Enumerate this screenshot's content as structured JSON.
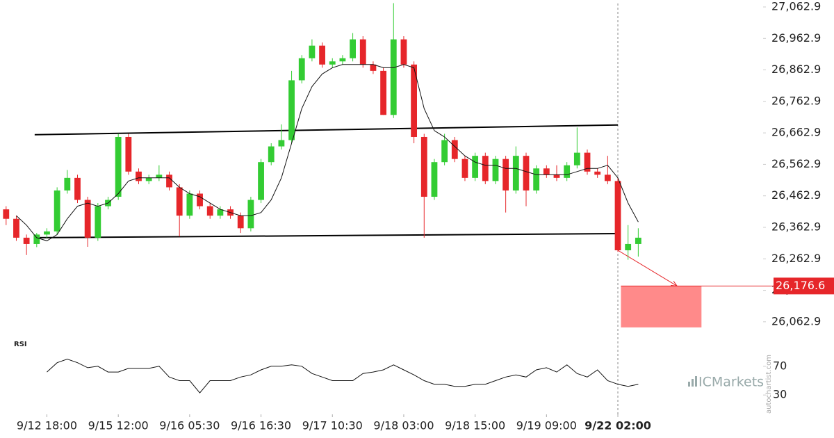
{
  "chart_data": {
    "type": "candlestick",
    "up_color": "#33cc33",
    "down_color": "#e6262a",
    "open": [
      26420,
      26390,
      26330,
      26310,
      26340,
      26350,
      26480,
      26520,
      26450,
      26330,
      26430,
      26460,
      26650,
      26540,
      26510,
      26520,
      26530,
      26490,
      26400,
      26470,
      26430,
      26400,
      26420,
      26400,
      26360,
      26450,
      26570,
      26620,
      26640,
      26830,
      26900,
      26940,
      26880,
      26890,
      26900,
      26960,
      26880,
      26860,
      26720,
      26960,
      26880,
      26650,
      26460,
      26570,
      26640,
      26580,
      26520,
      26590,
      26510,
      26580,
      26480,
      26590,
      26480,
      26550,
      26530,
      26520,
      26560,
      26600,
      26540,
      26530,
      26510,
      26290,
      26310
    ],
    "high": [
      26430,
      26400,
      26340,
      26345,
      26360,
      26490,
      26545,
      26530,
      26460,
      26440,
      26460,
      26660,
      26660,
      26550,
      26530,
      26560,
      26540,
      26500,
      26480,
      26480,
      26440,
      26430,
      26430,
      26410,
      26460,
      26580,
      26630,
      26690,
      26860,
      26910,
      26960,
      26950,
      26900,
      26910,
      26980,
      26970,
      26890,
      26870,
      27075,
      26970,
      26890,
      26660,
      26580,
      26660,
      26650,
      26590,
      26600,
      26600,
      26590,
      26590,
      26620,
      26600,
      26560,
      26560,
      26560,
      26570,
      26680,
      26610,
      26550,
      26590,
      26520,
      26370,
      26360
    ],
    "low": [
      26370,
      26320,
      26275,
      26300,
      26330,
      26340,
      26470,
      26440,
      26301,
      26320,
      26420,
      26450,
      26530,
      26500,
      26500,
      26510,
      26480,
      26334,
      26390,
      26420,
      26390,
      26390,
      26390,
      26345,
      26350,
      26440,
      26560,
      26610,
      26630,
      26820,
      26890,
      26870,
      26870,
      26880,
      26890,
      26870,
      26850,
      26720,
      26710,
      26870,
      26630,
      26330,
      26450,
      26560,
      26570,
      26510,
      26510,
      26500,
      26500,
      26410,
      26470,
      26430,
      26470,
      26520,
      26510,
      26510,
      26550,
      26530,
      26520,
      26500,
      26285,
      26260,
      26270
    ],
    "close": [
      26390,
      26330,
      26310,
      26340,
      26350,
      26480,
      26520,
      26450,
      26330,
      26430,
      26450,
      26650,
      26540,
      26510,
      26520,
      26530,
      26490,
      26400,
      26470,
      26430,
      26400,
      26420,
      26400,
      26360,
      26450,
      26570,
      26620,
      26640,
      26830,
      26900,
      26940,
      26880,
      26890,
      26900,
      26960,
      26880,
      26860,
      26720,
      26960,
      26880,
      26650,
      26460,
      26570,
      26640,
      26580,
      26520,
      26590,
      26510,
      26580,
      26480,
      26590,
      26480,
      26550,
      26530,
      26520,
      26560,
      26600,
      26540,
      26530,
      26510,
      26290,
      26310,
      26330
    ],
    "moving_average": {
      "color": "#111111",
      "values": [
        null,
        26400,
        26370,
        26330,
        26320,
        26340,
        26390,
        26430,
        26440,
        26430,
        26440,
        26470,
        26510,
        26520,
        26520,
        26520,
        26520,
        26490,
        26470,
        26460,
        26440,
        26420,
        26410,
        26400,
        26400,
        26410,
        26450,
        26520,
        26630,
        26740,
        26810,
        26850,
        26870,
        26880,
        26880,
        26880,
        26880,
        26870,
        26870,
        26880,
        26870,
        26740,
        26670,
        26650,
        26620,
        26590,
        26570,
        26560,
        26560,
        26550,
        26550,
        26540,
        26530,
        26530,
        26530,
        26530,
        26540,
        26550,
        26550,
        26560,
        26520,
        26440,
        26380
      ]
    },
    "trend_lines": [
      {
        "x": [
          2.8,
          60
        ],
        "y": [
          26657,
          26688
        ]
      },
      {
        "x": [
          2.8,
          60
        ],
        "y": [
          26330,
          26343
        ]
      }
    ],
    "projection": {
      "x": [
        60,
        65.8
      ],
      "y": [
        26290,
        26176.6
      ]
    },
    "target": {
      "price": {
        "value": 26176.6,
        "label": "26,176.6"
      },
      "low": 26045,
      "x": [
        60.3,
        68.2
      ]
    },
    "current_x": 60,
    "xlim": [
      -0.6,
      73.7
    ],
    "ylim": [
      26025,
      27085
    ],
    "xticks": [
      {
        "value": 4,
        "label": "9/12 18:00"
      },
      {
        "value": 11,
        "label": "9/15 12:00"
      },
      {
        "value": 18,
        "label": "9/16 05:30"
      },
      {
        "value": 25,
        "label": "9/16 16:30"
      },
      {
        "value": 32,
        "label": "9/17 10:30"
      },
      {
        "value": 39,
        "label": "9/18 03:00"
      },
      {
        "value": 46,
        "label": "9/18 15:00"
      },
      {
        "value": 53,
        "label": "9/19 09:00"
      },
      {
        "value": 60,
        "label": "9/22 02:00"
      }
    ],
    "yticks": [
      {
        "value": 26062.9,
        "label": "26,062.9"
      },
      {
        "value": 26162.9,
        "label": "26,162.9"
      },
      {
        "value": 26262.9,
        "label": "26,262.9"
      },
      {
        "value": 26362.9,
        "label": "26,362.9"
      },
      {
        "value": 26462.9,
        "label": "26,462.9"
      },
      {
        "value": 26562.9,
        "label": "26,562.9"
      },
      {
        "value": 26662.9,
        "label": "26,662.9"
      },
      {
        "value": 26762.9,
        "label": "26,762.9"
      },
      {
        "value": 26862.9,
        "label": "26,862.9"
      },
      {
        "value": 26962.9,
        "label": "26,962.9"
      },
      {
        "value": 27062.9,
        "label": "27,062.9"
      }
    ],
    "rsi": {
      "label": "RSI",
      "color": "#111111",
      "ylim": [
        4,
        96
      ],
      "yticks": [
        30,
        70
      ],
      "values": [
        null,
        null,
        null,
        null,
        62,
        75,
        80,
        75,
        68,
        70,
        62,
        62,
        67,
        67,
        67,
        70,
        55,
        50,
        50,
        33,
        50,
        50,
        50,
        55,
        58,
        65,
        70,
        70,
        72,
        70,
        60,
        55,
        50,
        50,
        50,
        60,
        62,
        65,
        72,
        65,
        58,
        50,
        45,
        45,
        42,
        42,
        45,
        45,
        50,
        55,
        58,
        55,
        65,
        68,
        62,
        72,
        60,
        55,
        65,
        50,
        45,
        42,
        45
      ]
    },
    "watermark": "ICMarkets",
    "source": "autochartist.com"
  }
}
